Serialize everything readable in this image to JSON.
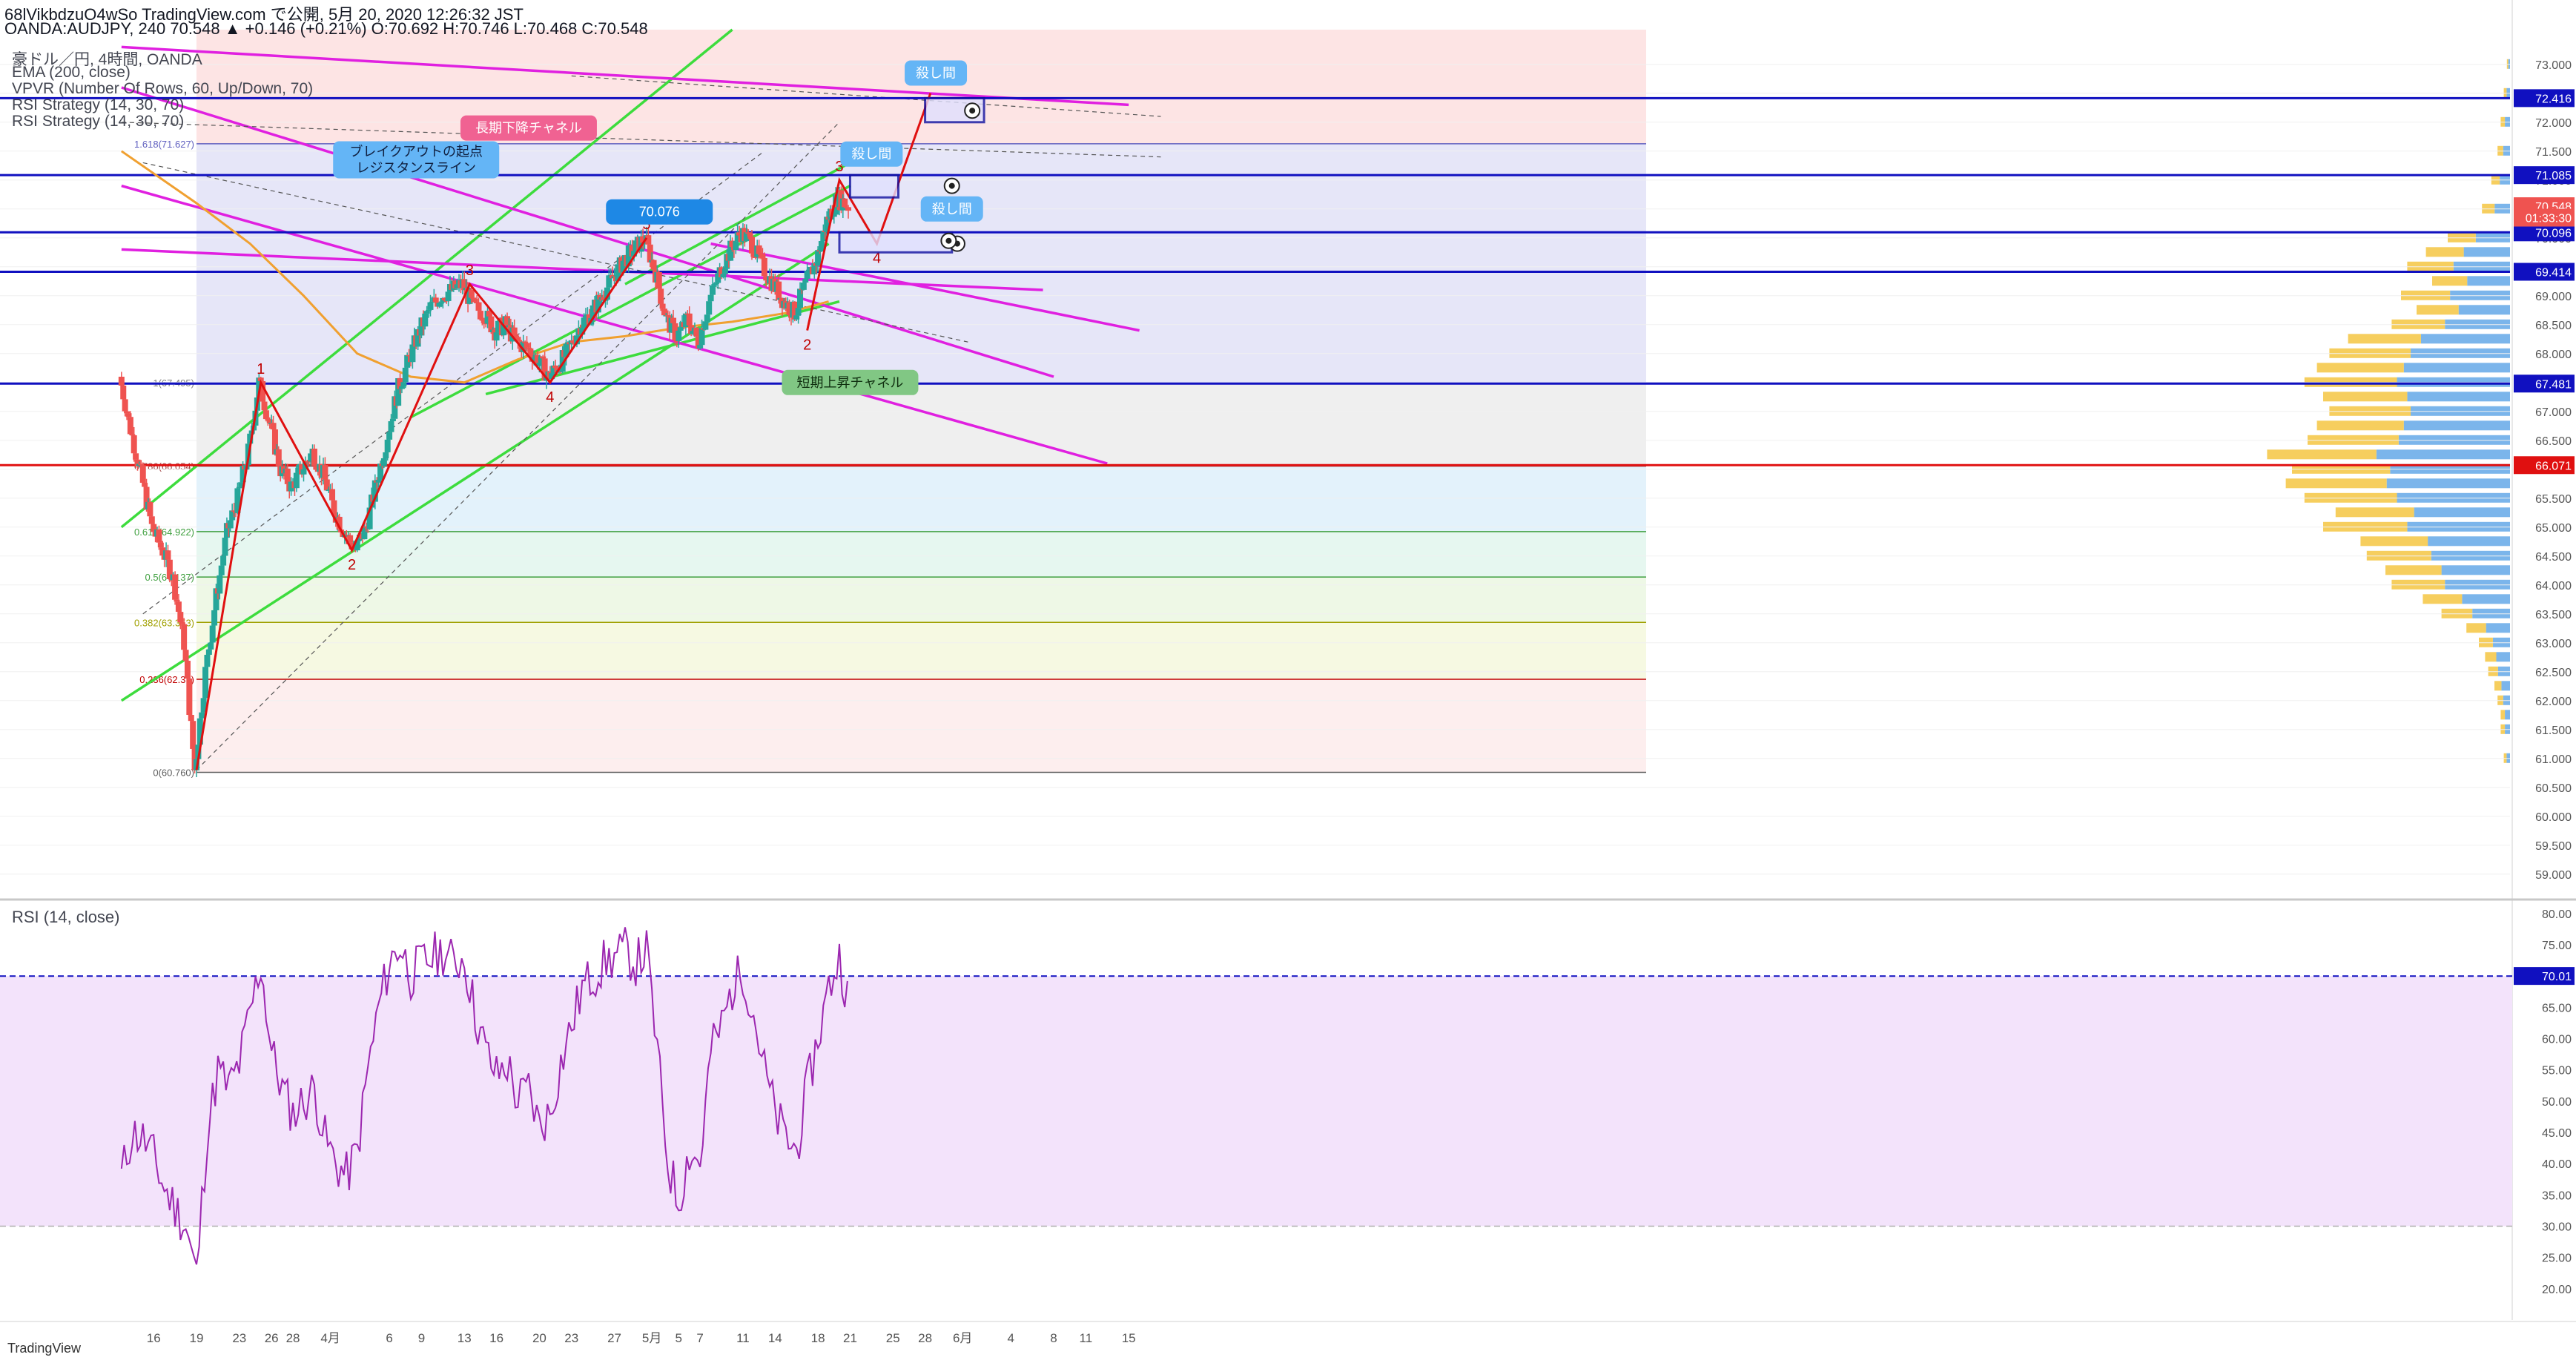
{
  "header": {
    "line1": "68lVikbdzuO4wSo TradingView.com で公開, 5月 20, 2020 12:26:32 JST",
    "line2": "OANDA:AUDJPY, 240 70.548 ▲ +0.146 (+0.21%) O:70.692 H:70.746 L:70.468 C:70.548"
  },
  "indicators": [
    "豪ドル／円, 4時間, OANDA",
    "EMA (200, close)",
    "VPVR (Number Of Rows, 60, Up/Down, 70)",
    "RSI Strategy (14, 30, 70)",
    "RSI Strategy (14, 30, 70)"
  ],
  "rsi_title": "RSI (14, close)",
  "footer_logo": "TradingView",
  "colors": {
    "candle_up": "#26a69a",
    "candle_down": "#ef5350",
    "channel_green": "#3ddc3d",
    "channel_magenta": "#e020e0",
    "wave_red": "#e01010",
    "ema": "#f0a030",
    "hline_blue": "#1010c0",
    "rsi_line": "#9c27b0",
    "rsi_fill": "#f3e3fb"
  },
  "chart_data": {
    "type": "candlestick",
    "symbol": "OANDA:AUDJPY",
    "timeframe": "240",
    "ohlc_last": {
      "open": 70.692,
      "high": 70.746,
      "low": 70.468,
      "close": 70.548
    },
    "ylim": [
      58.6,
      73.6
    ],
    "price_axis_ticks": [
      "73.000",
      "72.500",
      "72.000",
      "71.500",
      "71.000",
      "70.500",
      "70.000",
      "69.500",
      "69.000",
      "68.500",
      "68.000",
      "67.500",
      "67.000",
      "66.500",
      "66.000",
      "65.500",
      "65.000",
      "64.500",
      "64.000",
      "63.500",
      "63.000",
      "62.500",
      "62.000",
      "61.500",
      "61.000",
      "60.500",
      "60.000",
      "59.500",
      "59.000"
    ],
    "price_axis_tick_values": [
      73.0,
      72.5,
      72.0,
      71.5,
      71.0,
      70.5,
      70.0,
      69.5,
      69.0,
      68.5,
      68.0,
      67.5,
      67.0,
      66.5,
      66.0,
      65.5,
      65.0,
      64.5,
      64.0,
      63.5,
      63.0,
      62.5,
      62.0,
      61.5,
      61.0,
      60.5,
      60.0,
      59.5,
      59.0
    ],
    "x_ticks": [
      {
        "label": "16",
        "t": -4
      },
      {
        "label": "19",
        "t": 0
      },
      {
        "label": "23",
        "t": 4
      },
      {
        "label": "26",
        "t": 7
      },
      {
        "label": "28",
        "t": 9
      },
      {
        "label": "4月",
        "t": 12.5
      },
      {
        "label": "6",
        "t": 18
      },
      {
        "label": "9",
        "t": 21
      },
      {
        "label": "13",
        "t": 25
      },
      {
        "label": "16",
        "t": 28
      },
      {
        "label": "20",
        "t": 32
      },
      {
        "label": "23",
        "t": 35
      },
      {
        "label": "27",
        "t": 39
      },
      {
        "label": "5月",
        "t": 42.5
      },
      {
        "label": "5",
        "t": 45
      },
      {
        "label": "7",
        "t": 47
      },
      {
        "label": "11",
        "t": 51
      },
      {
        "label": "14",
        "t": 54
      },
      {
        "label": "18",
        "t": 58
      },
      {
        "label": "21",
        "t": 61
      },
      {
        "label": "25",
        "t": 65
      },
      {
        "label": "28",
        "t": 68
      },
      {
        "label": "6月",
        "t": 71.5
      },
      {
        "label": "4",
        "t": 76
      },
      {
        "label": "8",
        "t": 80
      },
      {
        "label": "11",
        "t": 83
      },
      {
        "label": "15",
        "t": 87
      }
    ],
    "price_series": [
      [
        -7,
        67.6
      ],
      [
        -6,
        66.7
      ],
      [
        -5,
        65.9
      ],
      [
        -4,
        65.0
      ],
      [
        -3,
        64.6
      ],
      [
        -2,
        64.1
      ],
      [
        -1,
        63.0
      ],
      [
        0,
        60.8
      ],
      [
        1,
        62.5
      ],
      [
        2,
        63.8
      ],
      [
        3,
        64.9
      ],
      [
        4,
        65.5
      ],
      [
        5,
        66.3
      ],
      [
        6,
        67.5
      ],
      [
        7,
        66.8
      ],
      [
        8,
        66.0
      ],
      [
        9,
        65.7
      ],
      [
        10,
        66.0
      ],
      [
        11,
        66.3
      ],
      [
        12,
        65.9
      ],
      [
        13,
        65.3
      ],
      [
        14,
        64.9
      ],
      [
        15,
        64.6
      ],
      [
        16,
        65.0
      ],
      [
        17,
        65.8
      ],
      [
        18,
        66.6
      ],
      [
        19,
        67.4
      ],
      [
        20,
        67.9
      ],
      [
        21,
        68.4
      ],
      [
        22,
        68.8
      ],
      [
        23,
        69.0
      ],
      [
        24,
        69.1
      ],
      [
        25,
        69.2
      ],
      [
        26,
        68.8
      ],
      [
        27,
        68.7
      ],
      [
        28,
        68.4
      ],
      [
        29,
        68.5
      ],
      [
        30,
        68.2
      ],
      [
        31,
        68.1
      ],
      [
        32,
        67.9
      ],
      [
        33,
        67.6
      ],
      [
        34,
        67.8
      ],
      [
        35,
        68.1
      ],
      [
        36,
        68.5
      ],
      [
        37,
        68.7
      ],
      [
        38,
        69.0
      ],
      [
        39,
        69.3
      ],
      [
        40,
        69.6
      ],
      [
        41,
        69.8
      ],
      [
        42,
        70.0
      ],
      [
        43,
        69.4
      ],
      [
        44,
        68.6
      ],
      [
        45,
        68.3
      ],
      [
        46,
        68.6
      ],
      [
        47,
        68.2
      ],
      [
        48,
        68.9
      ],
      [
        49,
        69.4
      ],
      [
        50,
        69.8
      ],
      [
        51,
        70.1
      ],
      [
        52,
        69.9
      ],
      [
        53,
        69.5
      ],
      [
        54,
        69.2
      ],
      [
        55,
        68.9
      ],
      [
        56,
        68.7
      ],
      [
        57,
        69.2
      ],
      [
        58,
        69.6
      ],
      [
        59,
        70.3
      ],
      [
        60,
        70.7
      ],
      [
        61,
        70.55
      ]
    ],
    "ema200": [
      [
        -7,
        71.5
      ],
      [
        0,
        70.6
      ],
      [
        5,
        69.9
      ],
      [
        10,
        69.0
      ],
      [
        15,
        68.0
      ],
      [
        20,
        67.6
      ],
      [
        25,
        67.5
      ],
      [
        30,
        67.9
      ],
      [
        35,
        68.2
      ],
      [
        40,
        68.3
      ],
      [
        45,
        68.45
      ],
      [
        50,
        68.55
      ],
      [
        55,
        68.7
      ],
      [
        59,
        68.9
      ]
    ],
    "horizontal_levels": [
      {
        "price": 72.416,
        "label": "72.416",
        "color": "#1010c0"
      },
      {
        "price": 71.085,
        "label": "71.085",
        "color": "#1010c0"
      },
      {
        "price": 70.096,
        "label": "70.096",
        "color": "#1010c0"
      },
      {
        "price": 69.414,
        "label": "69.414",
        "color": "#1010c0"
      },
      {
        "price": 67.481,
        "label": "67.481",
        "color": "#1010c0"
      },
      {
        "price": 66.071,
        "label": "66.071",
        "color": "#e01010"
      }
    ],
    "price_labels": [
      {
        "price": 70.548,
        "label": "70.548",
        "color": "#ef5350"
      },
      {
        "price": 70.35,
        "label": "01:33:30",
        "color": "#ef5350"
      }
    ],
    "fib_levels": [
      {
        "price": 71.627,
        "ratio": "1.618(71.627)",
        "color": "#6060c0"
      },
      {
        "price": 67.495,
        "ratio": "1(67.495)",
        "color": "#808080"
      },
      {
        "price": 66.054,
        "ratio": "0.786(66.054)",
        "color": "#a04040"
      },
      {
        "price": 64.922,
        "ratio": "0.618(64.922)",
        "color": "#40a040"
      },
      {
        "price": 64.137,
        "ratio": "0.5(64.137)",
        "color": "#40a040"
      },
      {
        "price": 63.353,
        "ratio": "0.382(63.353)",
        "color": "#a0a000"
      },
      {
        "price": 62.37,
        "ratio": "0.236(62.37)",
        "color": "#c00000"
      },
      {
        "price": 60.76,
        "ratio": "0(60.760)",
        "color": "#606060"
      }
    ],
    "elliott_waves": [
      {
        "label": "1",
        "t": 6,
        "price": 67.5
      },
      {
        "label": "2",
        "t": 14.5,
        "price": 64.6
      },
      {
        "label": "3",
        "t": 25.5,
        "price": 69.2
      },
      {
        "label": "4",
        "t": 33,
        "price": 67.5
      },
      {
        "label": "5",
        "t": 42,
        "price": 70.0
      },
      {
        "label": "3",
        "t": 60,
        "price": 71.0
      },
      {
        "label": "4",
        "t": 63.5,
        "price": 69.9
      },
      {
        "label": "5",
        "t": 68.5,
        "price": 72.5
      },
      {
        "label": "2",
        "t": 57,
        "price": 68.4
      }
    ],
    "wave_path_1": [
      [
        0,
        60.8
      ],
      [
        6,
        67.5
      ],
      [
        14.5,
        64.6
      ],
      [
        25.5,
        69.2
      ],
      [
        33,
        67.5
      ],
      [
        42,
        70.0
      ]
    ],
    "wave_path_2": [
      [
        57,
        68.4
      ],
      [
        60,
        71.0
      ],
      [
        63.5,
        69.9
      ],
      [
        68.5,
        72.5
      ]
    ],
    "annotations": [
      {
        "text": "長期下降チャネル",
        "t": 31,
        "price": 71.9,
        "bg": "#f06292",
        "fg": "#ffffff"
      },
      {
        "text": "ブレイクアウトの起点",
        "text2": "レジスタンスライン",
        "t": 20.5,
        "price": 71.35,
        "bg": "#64b5f6",
        "fg": "#102040"
      },
      {
        "text": "短期上昇チャネル",
        "t": 61,
        "price": 67.5,
        "bg": "#81c784",
        "fg": "#103010"
      },
      {
        "text": "殺し間",
        "t": 69,
        "price": 72.85,
        "bg": "#64b5f6",
        "fg": "#ffffff"
      },
      {
        "text": "殺し間",
        "t": 63,
        "price": 71.45,
        "bg": "#64b5f6",
        "fg": "#ffffff"
      },
      {
        "text": "殺し間",
        "t": 70.5,
        "price": 70.5,
        "bg": "#64b5f6",
        "fg": "#ffffff"
      },
      {
        "text": "70.076",
        "t": 43.2,
        "price": 70.45,
        "bg": "#1e88e5",
        "fg": "#ffffff"
      }
    ],
    "vpvr_profile": [
      [
        73.0,
        1
      ],
      [
        72.5,
        2
      ],
      [
        72.0,
        3
      ],
      [
        71.5,
        4
      ],
      [
        71.0,
        6
      ],
      [
        70.5,
        9
      ],
      [
        70.0,
        20
      ],
      [
        69.75,
        27
      ],
      [
        69.5,
        33
      ],
      [
        69.25,
        25
      ],
      [
        69.0,
        35
      ],
      [
        68.75,
        30
      ],
      [
        68.5,
        38
      ],
      [
        68.25,
        52
      ],
      [
        68.0,
        58
      ],
      [
        67.75,
        62
      ],
      [
        67.5,
        66
      ],
      [
        67.25,
        60
      ],
      [
        67.0,
        58
      ],
      [
        66.75,
        62
      ],
      [
        66.5,
        65
      ],
      [
        66.25,
        78
      ],
      [
        66.0,
        70
      ],
      [
        65.75,
        72
      ],
      [
        65.5,
        66
      ],
      [
        65.25,
        56
      ],
      [
        65.0,
        60
      ],
      [
        64.75,
        48
      ],
      [
        64.5,
        46
      ],
      [
        64.25,
        40
      ],
      [
        64.0,
        38
      ],
      [
        63.75,
        28
      ],
      [
        63.5,
        22
      ],
      [
        63.25,
        14
      ],
      [
        63.0,
        10
      ],
      [
        62.75,
        8
      ],
      [
        62.5,
        7
      ],
      [
        62.25,
        5
      ],
      [
        62.0,
        4
      ],
      [
        61.75,
        3
      ],
      [
        61.5,
        3
      ],
      [
        61.0,
        2
      ]
    ]
  },
  "rsi_data": {
    "type": "line",
    "title": "RSI (14, close)",
    "ylim": [
      15,
      82
    ],
    "ticks": [
      "80.00",
      "75.00",
      "70.00",
      "65.00",
      "60.00",
      "55.00",
      "50.00",
      "45.00",
      "40.00",
      "35.00",
      "30.00",
      "25.00",
      "20.00"
    ],
    "tick_values": [
      80,
      75,
      70,
      65,
      60,
      55,
      50,
      45,
      40,
      35,
      30,
      25,
      20
    ],
    "level_labels": [
      {
        "value": 70.01,
        "label": "70.01"
      }
    ],
    "upper_band": 70,
    "lower_band": 30,
    "values": [
      [
        -7,
        38
      ],
      [
        -6,
        45
      ],
      [
        -5,
        44
      ],
      [
        -4,
        41
      ],
      [
        -3,
        36
      ],
      [
        -2,
        33
      ],
      [
        -1,
        30
      ],
      [
        0,
        22
      ],
      [
        1,
        45
      ],
      [
        2,
        55
      ],
      [
        3,
        52
      ],
      [
        4,
        56
      ],
      [
        5,
        64
      ],
      [
        6,
        72
      ],
      [
        7,
        58
      ],
      [
        8,
        52
      ],
      [
        9,
        48
      ],
      [
        10,
        50
      ],
      [
        11,
        52
      ],
      [
        12,
        44
      ],
      [
        13,
        40
      ],
      [
        14,
        38
      ],
      [
        15,
        42
      ],
      [
        16,
        55
      ],
      [
        17,
        65
      ],
      [
        18,
        72
      ],
      [
        19,
        75
      ],
      [
        20,
        70
      ],
      [
        21,
        72
      ],
      [
        22,
        73
      ],
      [
        23,
        74
      ],
      [
        24,
        72
      ],
      [
        25,
        73
      ],
      [
        26,
        64
      ],
      [
        27,
        58
      ],
      [
        28,
        54
      ],
      [
        29,
        56
      ],
      [
        30,
        50
      ],
      [
        31,
        52
      ],
      [
        32,
        46
      ],
      [
        33,
        48
      ],
      [
        34,
        56
      ],
      [
        35,
        62
      ],
      [
        36,
        68
      ],
      [
        37,
        70
      ],
      [
        38,
        72
      ],
      [
        39,
        73
      ],
      [
        40,
        74
      ],
      [
        41,
        72
      ],
      [
        42,
        74
      ],
      [
        43,
        58
      ],
      [
        44,
        40
      ],
      [
        45,
        34
      ],
      [
        46,
        42
      ],
      [
        47,
        40
      ],
      [
        48,
        58
      ],
      [
        49,
        62
      ],
      [
        50,
        68
      ],
      [
        51,
        71
      ],
      [
        52,
        64
      ],
      [
        53,
        55
      ],
      [
        54,
        48
      ],
      [
        55,
        44
      ],
      [
        56,
        42
      ],
      [
        57,
        52
      ],
      [
        58,
        60
      ],
      [
        59,
        68
      ],
      [
        60,
        73
      ],
      [
        61,
        65
      ]
    ]
  }
}
